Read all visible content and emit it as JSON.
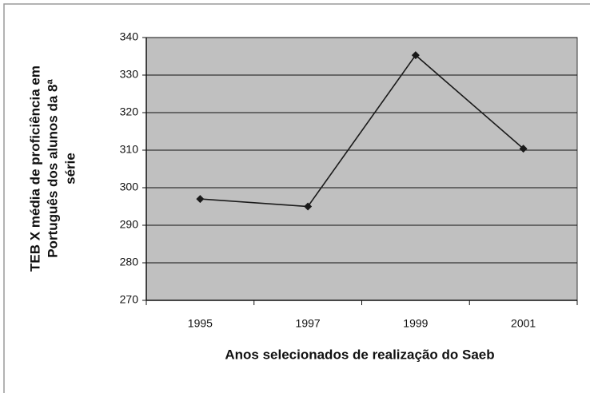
{
  "chart_data": {
    "type": "line",
    "xlabel": "Anos selecionados de realização do Saeb",
    "ylabel": [
      "TEB X média de proficiência em",
      "Português dos alunos da 8ª",
      "série"
    ],
    "categories": [
      "1995",
      "1997",
      "1999",
      "2001"
    ],
    "series": [
      {
        "color": "#1a1a1a",
        "values": [
          297,
          295,
          335.3,
          310.4
        ]
      }
    ],
    "ylim": [
      270,
      340
    ],
    "yticks": [
      270,
      280,
      290,
      300,
      310,
      320,
      330,
      340
    ],
    "grid": true,
    "plot_background": "#c0c0c0"
  }
}
